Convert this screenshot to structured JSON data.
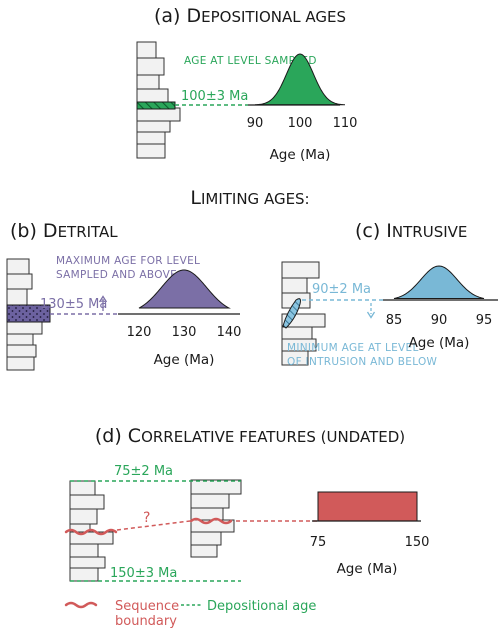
{
  "panel_a": {
    "title_lead": "(a) D",
    "title_rest": "EPOSITIONAL AGES",
    "annotation": "AGE AT LEVEL SAMPLED",
    "age_label": "100±3 Ma",
    "axis_label": "Age (Ma)",
    "ticks": [
      "90",
      "100",
      "110"
    ],
    "peak": 100,
    "sigma": 3,
    "xrange": [
      90,
      110
    ]
  },
  "limiting": {
    "lead": "L",
    "rest": "IMITING AGES:"
  },
  "panel_b": {
    "title_lead": "(b) D",
    "title_rest": "ETRITAL",
    "annotation_1": "MAXIMUM AGE FOR LEVEL",
    "annotation_2": "SAMPLED AND ABOVE",
    "age_label": "130±5 Ma",
    "axis_label": "Age (Ma)",
    "ticks": [
      "120",
      "130",
      "140"
    ],
    "peak": 130,
    "sigma": 5,
    "xrange": [
      120,
      140
    ]
  },
  "panel_c": {
    "title_lead": "(c) I",
    "title_rest": "NTRUSIVE",
    "annotation_1": "MINIMUM AGE AT LEVEL",
    "annotation_2": "OF INTRUSION AND BELOW",
    "age_label": "90±2 Ma",
    "axis_label": "Age (Ma)",
    "ticks": [
      "85",
      "90",
      "95"
    ],
    "peak": 90,
    "sigma": 2,
    "xrange": [
      85,
      95
    ]
  },
  "panel_d": {
    "title_lead": "(d) C",
    "title_rest": "ORRELATIVE FEATURES (UNDATED)",
    "top_age": "75±2 Ma",
    "bottom_age": "150±3 Ma",
    "question": "?",
    "axis_label": "Age (Ma)",
    "ticks": [
      "75",
      "150"
    ],
    "range": [
      75,
      150
    ]
  },
  "legend": {
    "sequence_1": "Sequence",
    "sequence_2": "boundary",
    "depositional": "Depositional age"
  },
  "colors": {
    "green": "#2aa65a",
    "purple": "#7b6fa6",
    "blue": "#79b8d6",
    "red": "#d15a5a",
    "dark": "#1a1a1a"
  }
}
